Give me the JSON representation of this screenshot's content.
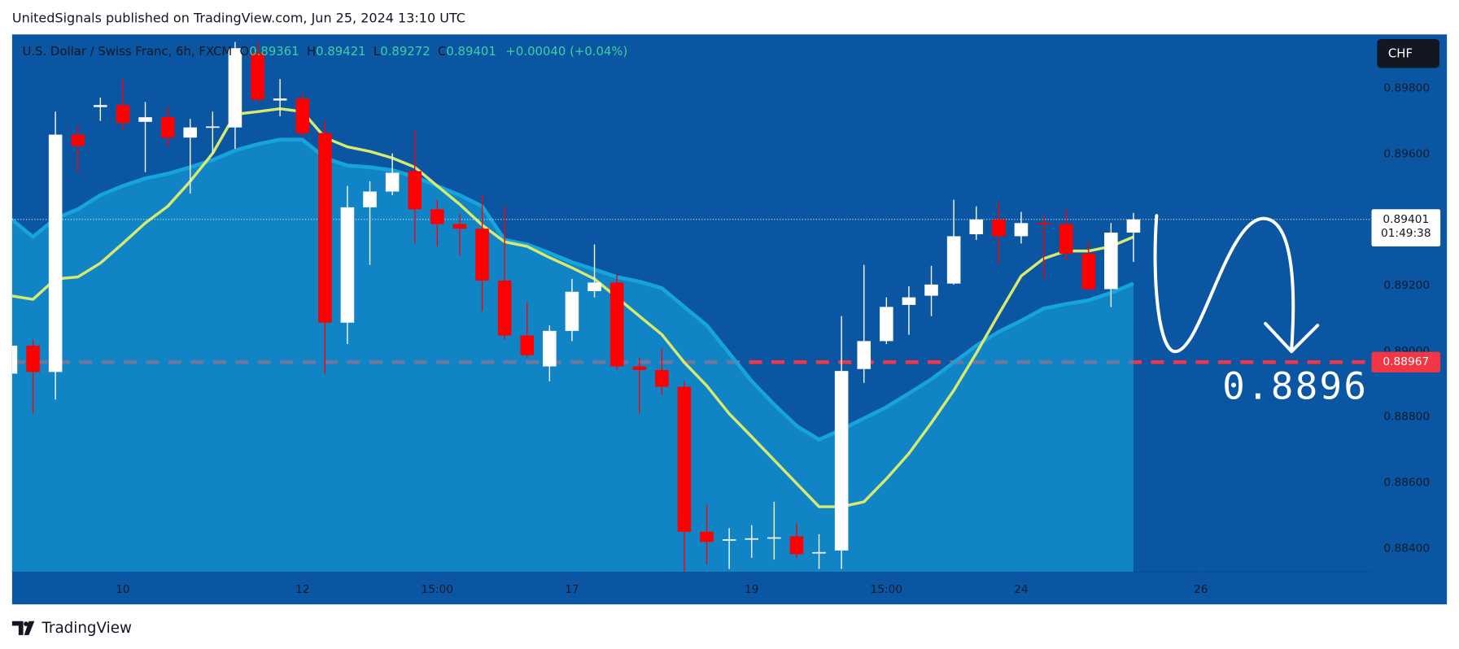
{
  "page": {
    "publisher_line": "UnitedSignals published on TradingView.com, Jun 25, 2024 13:10 UTC",
    "brand": "TradingView"
  },
  "chart_data": {
    "type": "candlestick",
    "title": "U.S. Dollar / Swiss Franc, 6h, FXCM",
    "ohlc_labels": [
      "O",
      "H",
      "L",
      "C"
    ],
    "change": "+0.00040 (+0.04%)",
    "countdown": "01:49:38",
    "currency_button": "CHF",
    "annotation": "0.8896",
    "up_color": "#ffffff",
    "down_color": "#ff0000",
    "open": [
      0.88932,
      0.89017,
      0.88937,
      0.89659,
      0.89743,
      0.89749,
      0.89698,
      0.89712,
      0.8965,
      0.89681,
      0.89681,
      0.89907,
      0.89763,
      0.89769,
      0.89664,
      0.89087,
      0.89438,
      0.89486,
      0.89548,
      0.89432,
      0.89387,
      0.89373,
      0.89215,
      0.89048,
      0.88954,
      0.89062,
      0.89183,
      0.89209,
      0.88954,
      0.88943,
      0.88892,
      0.88451,
      0.88426,
      0.88428,
      0.88431,
      0.88437,
      0.88386,
      0.88394,
      0.88946,
      0.89031,
      0.89141,
      0.89169,
      0.89206,
      0.89356,
      0.89401,
      0.8935,
      0.8939,
      0.89387,
      0.89297,
      0.89189,
      0.89361
    ],
    "high": [
      0.89036,
      0.89036,
      0.89729,
      0.89687,
      0.89772,
      0.89828,
      0.89758,
      0.89743,
      0.89707,
      0.89729,
      0.89941,
      0.89941,
      0.89828,
      0.89786,
      0.89701,
      0.89503,
      0.89517,
      0.89602,
      0.89673,
      0.89461,
      0.89418,
      0.89475,
      0.89441,
      0.8915,
      0.89079,
      0.8922,
      0.89325,
      0.89234,
      0.8898,
      0.89008,
      0.88909,
      0.88533,
      0.88462,
      0.88471,
      0.88542,
      0.88477,
      0.88443,
      0.89107,
      0.89263,
      0.89164,
      0.89198,
      0.8926,
      0.89461,
      0.89441,
      0.89452,
      0.89424,
      0.89413,
      0.89432,
      0.89333,
      0.8939,
      0.89421
    ],
    "low": [
      0.88909,
      0.8881,
      0.88853,
      0.89545,
      0.89701,
      0.89673,
      0.89545,
      0.89622,
      0.8948,
      0.89602,
      0.89616,
      0.89758,
      0.89715,
      0.8965,
      0.88932,
      0.89022,
      0.89263,
      0.89475,
      0.89328,
      0.89319,
      0.89291,
      0.89121,
      0.89036,
      0.8898,
      0.88909,
      0.89031,
      0.89164,
      0.88943,
      0.8881,
      0.88867,
      0.88329,
      0.88352,
      0.88338,
      0.88372,
      0.88366,
      0.88372,
      0.88338,
      0.88338,
      0.88904,
      0.89022,
      0.8905,
      0.89107,
      0.89203,
      0.89339,
      0.89266,
      0.89328,
      0.8922,
      0.89277,
      0.89186,
      0.89135,
      0.89272
    ],
    "close": [
      0.89017,
      0.88937,
      0.89659,
      0.89625,
      0.89749,
      0.89695,
      0.89712,
      0.8965,
      0.89681,
      0.89684,
      0.89922,
      0.89766,
      0.89769,
      0.89664,
      0.89087,
      0.89438,
      0.89486,
      0.89543,
      0.89432,
      0.89387,
      0.89373,
      0.89215,
      0.89048,
      0.88988,
      0.89062,
      0.89181,
      0.89209,
      0.88954,
      0.88943,
      0.88892,
      0.88451,
      0.8842,
      0.88428,
      0.88431,
      0.88434,
      0.88383,
      0.88389,
      0.8894,
      0.89031,
      0.89135,
      0.89164,
      0.89203,
      0.8935,
      0.89401,
      0.8935,
      0.8939,
      0.89387,
      0.89297,
      0.89189,
      0.89361,
      0.89401
    ],
    "overlays": [
      {
        "type": "area",
        "color": "#16a4dc",
        "values": [
          0.89404,
          0.89348,
          0.89404,
          0.89432,
          0.89475,
          0.89503,
          0.89526,
          0.8954,
          0.8956,
          0.89582,
          0.89611,
          0.8963,
          0.89644,
          0.89644,
          0.89588,
          0.89565,
          0.8956,
          0.89551,
          0.89531,
          0.89503,
          0.89475,
          0.89441,
          0.89339,
          0.89325,
          0.89299,
          0.89271,
          0.89249,
          0.89226,
          0.89212,
          0.89192,
          0.89135,
          0.89079,
          0.88994,
          0.88909,
          0.88838,
          0.88773,
          0.88731,
          0.88762,
          0.88796,
          0.8883,
          0.88872,
          0.88915,
          0.88966,
          0.89017,
          0.89059,
          0.89093,
          0.8913,
          0.89144,
          0.89155,
          0.89178,
          0.89206
        ]
      },
      {
        "type": "line",
        "color": "#d8ea6e",
        "values": [
          0.89169,
          0.89158,
          0.8922,
          0.89226,
          0.89268,
          0.89328,
          0.8939,
          0.89441,
          0.89517,
          0.89602,
          0.89721,
          0.89729,
          0.89738,
          0.89729,
          0.8965,
          0.89622,
          0.89608,
          0.89588,
          0.8956,
          0.89503,
          0.89447,
          0.89384,
          0.89333,
          0.89319,
          0.89285,
          0.89254,
          0.8922,
          0.89164,
          0.89107,
          0.89051,
          0.88966,
          0.88895,
          0.8881,
          0.8874,
          0.88669,
          0.88598,
          0.88527,
          0.88527,
          0.88542,
          0.88612,
          0.88689,
          0.88782,
          0.88881,
          0.88994,
          0.89113,
          0.89229,
          0.89282,
          0.89305,
          0.89305,
          0.89319,
          0.89348
        ]
      }
    ],
    "price_lines": [
      {
        "value": 0.88967,
        "color": "#f23645"
      }
    ],
    "ylim": [
      0.88329,
      0.89964
    ],
    "yticks": [
      {
        "value": 0.898,
        "label": "0.89800"
      },
      {
        "value": 0.896,
        "label": "0.89600"
      },
      {
        "value": 0.894,
        "label": "0.89400"
      },
      {
        "value": 0.892,
        "label": "0.89200"
      },
      {
        "value": 0.89,
        "label": "0.89000"
      },
      {
        "value": 0.888,
        "label": "0.88800"
      },
      {
        "value": 0.886,
        "label": "0.88600"
      },
      {
        "value": 0.884,
        "label": "0.88400"
      }
    ],
    "xlim": [
      0.07,
      60.6
    ],
    "xticks": [
      {
        "value": 5,
        "label": "10"
      },
      {
        "value": 13,
        "label": "12"
      },
      {
        "value": 19,
        "label": "15:00"
      },
      {
        "value": 25,
        "label": "17"
      },
      {
        "value": 33,
        "label": "19"
      },
      {
        "value": 39,
        "label": "15:00"
      },
      {
        "value": 45,
        "label": "24"
      },
      {
        "value": 53,
        "label": "26"
      }
    ],
    "grid": false
  }
}
